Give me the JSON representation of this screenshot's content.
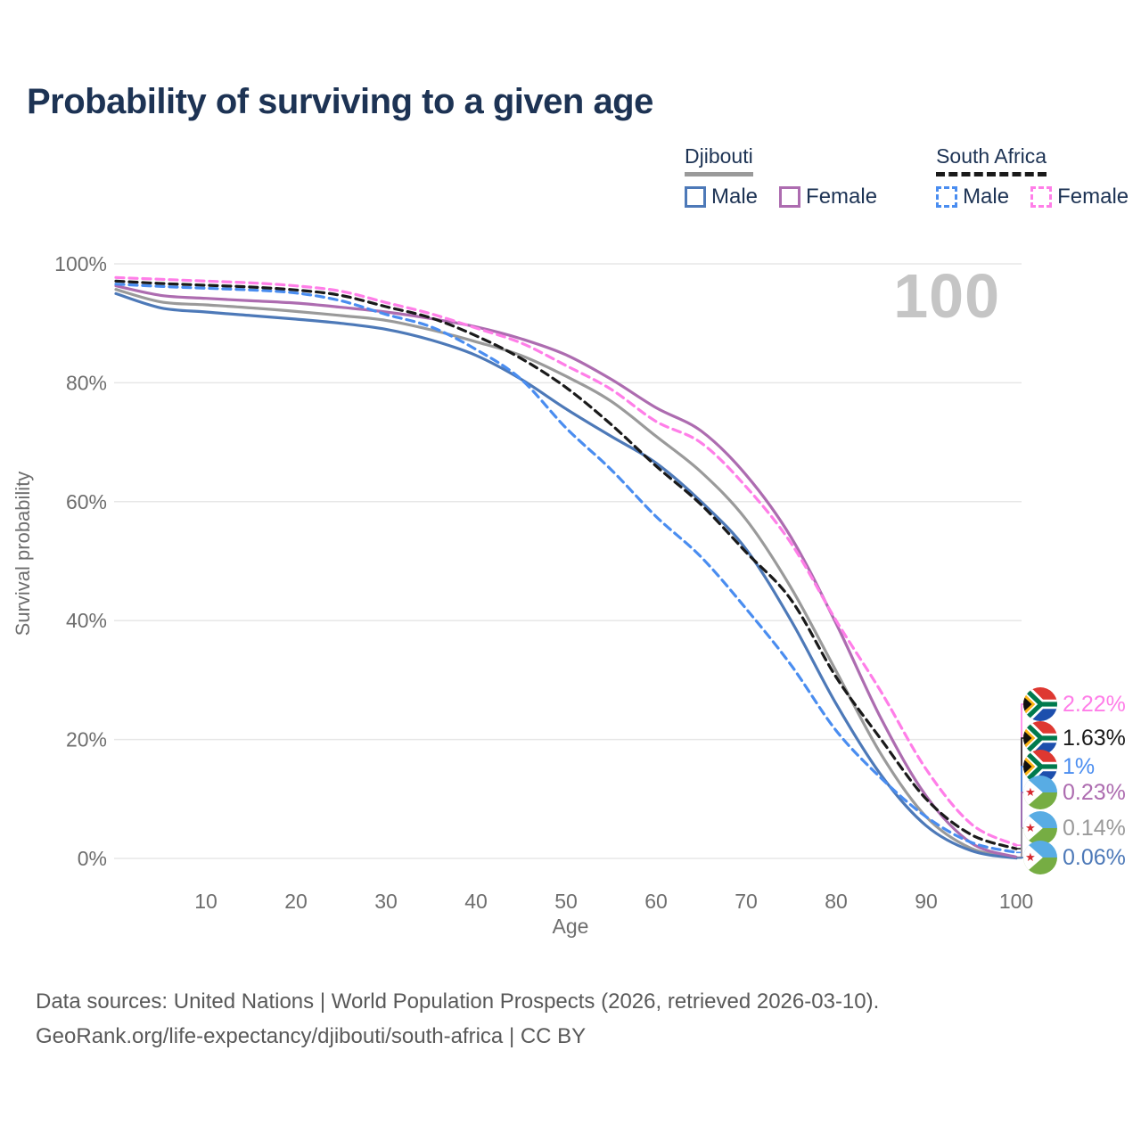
{
  "title": "Probability of surviving to a given age",
  "watermark": "100",
  "legend": {
    "djibouti": {
      "name": "Djibouti",
      "male": "Male",
      "female": "Female"
    },
    "south_africa": {
      "name": "South Africa",
      "male": "Male",
      "female": "Female"
    }
  },
  "colors": {
    "djibouti_male": "#4d79b8",
    "djibouti_female": "#ad6cb0",
    "djibouti_total": "#9a9a9a",
    "south_africa_male": "#4a8df0",
    "south_africa_female": "#ff7ee8",
    "south_africa_total": "#1a1a1a",
    "grid": "#e7e7e7",
    "tick_text": "#6e6e6e",
    "title_text": "#1d3354",
    "watermark": "#c5c5c5",
    "footer_text": "#595959"
  },
  "chart_data": {
    "type": "line",
    "title": "Probability of surviving to a given age",
    "xlabel": "Age",
    "ylabel": "Survival probability",
    "xlim": [
      0,
      100
    ],
    "ylim": [
      0,
      100
    ],
    "grid": "horizontal",
    "xticks": [
      10,
      20,
      30,
      40,
      50,
      60,
      70,
      80,
      90,
      100
    ],
    "yticks_percent": [
      0,
      20,
      40,
      60,
      80,
      100
    ],
    "ages": [
      0,
      5,
      10,
      15,
      20,
      25,
      30,
      35,
      40,
      45,
      50,
      55,
      60,
      65,
      70,
      75,
      80,
      85,
      90,
      95,
      100
    ],
    "series": [
      {
        "name": "Djibouti Both sexes",
        "country": "Djibouti",
        "sex": "Both sexes",
        "style": "solid",
        "color_key": "djibouti_total",
        "values": [
          95.7,
          93.6,
          93.1,
          92.6,
          92.0,
          91.3,
          90.5,
          88.9,
          86.9,
          84.6,
          81.1,
          76.9,
          71.0,
          65.0,
          57.0,
          45.5,
          31.5,
          17.5,
          7.0,
          1.7,
          0.14
        ]
      },
      {
        "name": "Djibouti Male",
        "country": "Djibouti",
        "sex": "Male",
        "style": "solid",
        "color_key": "djibouti_male",
        "values": [
          95.0,
          92.6,
          91.9,
          91.3,
          90.7,
          90.0,
          89.0,
          87.2,
          84.6,
          80.6,
          75.6,
          71.0,
          66.5,
          60.0,
          52.0,
          40.0,
          26.0,
          14.0,
          5.5,
          1.3,
          0.06
        ]
      },
      {
        "name": "Djibouti Female",
        "country": "Djibouti",
        "sex": "Female",
        "style": "solid",
        "color_key": "djibouti_female",
        "values": [
          96.3,
          94.7,
          94.2,
          93.8,
          93.4,
          92.7,
          91.9,
          90.8,
          89.4,
          87.4,
          84.7,
          80.6,
          75.8,
          71.9,
          64.5,
          54.0,
          39.5,
          23.5,
          10.5,
          2.6,
          0.23
        ]
      },
      {
        "name": "South Africa Male",
        "country": "South Africa",
        "sex": "Male",
        "style": "dashed",
        "color_key": "south_africa_male",
        "values": [
          96.6,
          96.2,
          95.9,
          95.6,
          95.1,
          93.8,
          91.5,
          89.4,
          85.6,
          80.6,
          72.4,
          65.4,
          57.5,
          50.7,
          42.0,
          32.5,
          21.5,
          13.5,
          7.0,
          2.7,
          1.0
        ]
      },
      {
        "name": "South Africa Both sexes",
        "country": "South Africa",
        "sex": "Both sexes",
        "style": "dashed",
        "color_key": "south_africa_total",
        "values": [
          97.1,
          96.7,
          96.4,
          96.1,
          95.6,
          94.7,
          92.8,
          90.9,
          87.9,
          84.1,
          79.2,
          73.0,
          66.0,
          59.5,
          51.5,
          43.5,
          30.5,
          20.0,
          10.0,
          4.0,
          1.63
        ]
      },
      {
        "name": "South Africa Female",
        "country": "South Africa",
        "sex": "Female",
        "style": "dashed",
        "color_key": "south_africa_female",
        "values": [
          97.7,
          97.4,
          97.1,
          96.8,
          96.3,
          95.4,
          93.5,
          91.6,
          89.2,
          86.7,
          82.9,
          78.9,
          73.5,
          69.9,
          62.5,
          53.0,
          40.0,
          28.0,
          15.0,
          5.8,
          2.22
        ]
      }
    ],
    "end_labels": [
      {
        "text": "2.22%",
        "flag": "south-africa",
        "series": "South Africa Female"
      },
      {
        "text": "1.63%",
        "flag": "south-africa",
        "series": "South Africa Both sexes"
      },
      {
        "text": "1%",
        "flag": "south-africa",
        "series": "South Africa Male"
      },
      {
        "text": "0.23%",
        "flag": "djibouti",
        "series": "Djibouti Female"
      },
      {
        "text": "0.14%",
        "flag": "djibouti",
        "series": "Djibouti Both sexes"
      },
      {
        "text": "0.06%",
        "flag": "djibouti",
        "series": "Djibouti Male"
      }
    ]
  },
  "footer": {
    "line1": "Data sources: United Nations | World Population Prospects (2026, retrieved 2026-03-10).",
    "line2": "GeoRank.org/life-expectancy/djibouti/south-africa | CC BY"
  }
}
